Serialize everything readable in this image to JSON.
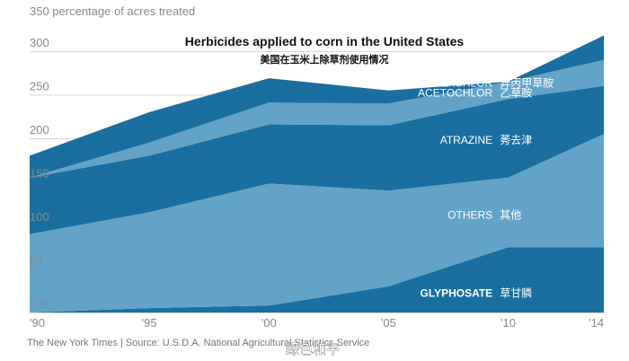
{
  "chart_data": {
    "type": "area",
    "title": "Herbicides applied to corn in the United States",
    "subtitle": "美国在玉米上除草剂使用情况",
    "ylabel": "350 percentage of acres treated",
    "x": [
      1990,
      1995,
      2000,
      2005,
      2010,
      2014
    ],
    "xtick_labels": [
      "'90",
      "'95",
      "'00",
      "'05",
      "'10",
      "'14"
    ],
    "yticks": [
      0,
      50,
      100,
      150,
      200,
      250,
      300
    ],
    "ylim": [
      0,
      350
    ],
    "grid": true,
    "stacked": true,
    "series": [
      {
        "name": "GLYPHOSATE",
        "name_zh": "草甘膦",
        "color": "#1a6fa0",
        "bold": true,
        "values": [
          0,
          5,
          8,
          30,
          75,
          75
        ]
      },
      {
        "name": "OTHERS",
        "name_zh": "其他",
        "color": "#64a3c8",
        "values": [
          90,
          110,
          140,
          110,
          80,
          130
        ]
      },
      {
        "name": "ATRAZINE",
        "name_zh": "莠去津",
        "color": "#1a6fa0",
        "values": [
          65,
          65,
          68,
          75,
          90,
          55
        ]
      },
      {
        "name": "ACETOCHLOR",
        "name_zh": "乙草胺",
        "color": "#64a3c8",
        "values": [
          0,
          15,
          25,
          25,
          20,
          30
        ]
      },
      {
        "name": "METOLACHLOR",
        "name_zh": "异丙甲草胺",
        "color": "#1a6fa0",
        "values": [
          25,
          35,
          28,
          15,
          0,
          28
        ]
      }
    ]
  },
  "source": "The New York Times  |  Source: U.S.D.A. National Agricultural Statistics Service",
  "watermark": "绿色和平"
}
